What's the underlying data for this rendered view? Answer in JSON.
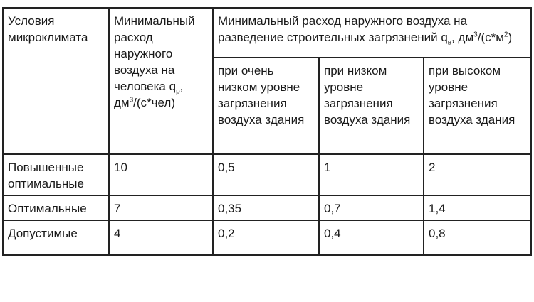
{
  "header": {
    "col1": "Условия микроклимата",
    "col2": {
      "text": "Минимальный расход наружного воздуха на человека q",
      "sub": "р",
      "after": ", дм",
      "sup": "3",
      "unit": "/(с*чел)"
    },
    "col3": {
      "text": "Минимальный расход наружного воздуха на разведение строительных загрязнений q",
      "sub": "в",
      "after": ", дм",
      "sup": "3",
      "unit": "/(с*м",
      "sup2": "2",
      "end": ")"
    },
    "sub_cols": [
      "при очень низком уровне загрязнения воздуха здания",
      "при низком уровне загрязнения воздуха здания",
      "при высоком уровне загрязнения воздуха здания"
    ]
  },
  "rows": [
    {
      "condition": "Повышенные оптимальные",
      "qp": "10",
      "very_low": "0,5",
      "low": "1",
      "high": "2"
    },
    {
      "condition": "Оптимальные",
      "qp": "7",
      "very_low": "0,35",
      "low": "0,7",
      "high": "1,4"
    },
    {
      "condition": "Допустимые",
      "qp": "4",
      "very_low": "0,2",
      "low": "0,4",
      "high": "0,8"
    }
  ]
}
